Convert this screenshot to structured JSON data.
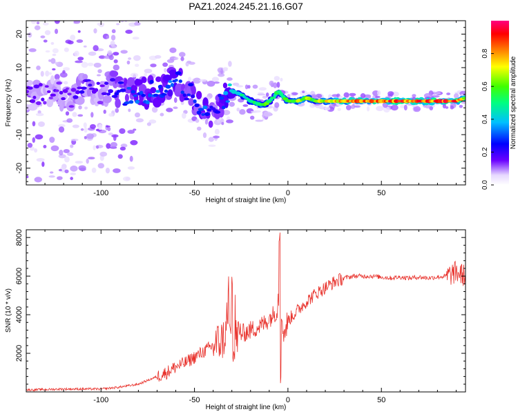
{
  "title": "PAZ1.2024.245.21.16.G07",
  "chart_data": [
    {
      "type": "heatmap",
      "xlabel": "Height of straight line (km)",
      "ylabel": "Frequency (Hz)",
      "xlim": [
        -140,
        95
      ],
      "ylim": [
        -25,
        24
      ],
      "xticks": [
        -100,
        -50,
        0,
        50
      ],
      "yticks": [
        -20,
        -10,
        0,
        10,
        20
      ],
      "colorbar": {
        "label": "Normalized spectral amplitude",
        "range": [
          0,
          1
        ],
        "ticks": [
          0.0,
          0.2,
          0.4,
          0.6,
          0.8
        ],
        "colors": [
          "#ffffff",
          "#6a00ff",
          "#0000ff",
          "#00bfff",
          "#00ff80",
          "#40ff00",
          "#ffff00",
          "#ff8000",
          "#ff0000",
          "#ff0080"
        ]
      },
      "ridge": {
        "x": [
          -135,
          -125,
          -115,
          -110,
          -100,
          -95,
          -88,
          -80,
          -72,
          -65,
          -60,
          -55,
          -50,
          -47,
          -44,
          -40,
          -36,
          -33,
          -30,
          -25,
          -20,
          -15,
          -12,
          -8,
          -5,
          -2,
          0,
          5,
          10,
          15,
          20,
          30,
          40,
          50,
          60,
          70,
          80,
          90,
          95
        ],
        "y": [
          2,
          3,
          1,
          5,
          2,
          5,
          2,
          2,
          3,
          5,
          6,
          4,
          1,
          -2,
          -4,
          -5,
          0,
          2,
          3,
          2,
          0,
          -1,
          -1,
          1,
          3,
          1,
          0,
          0,
          1,
          0,
          0,
          0,
          0,
          0,
          0,
          0,
          0,
          0,
          1
        ],
        "amplitude": [
          0.15,
          0.15,
          0.15,
          0.2,
          0.15,
          0.2,
          0.25,
          0.3,
          0.3,
          0.3,
          0.3,
          0.25,
          0.25,
          0.25,
          0.3,
          0.2,
          0.25,
          0.35,
          0.4,
          0.45,
          0.5,
          0.55,
          0.6,
          0.45,
          0.5,
          0.55,
          0.5,
          0.6,
          0.65,
          0.6,
          0.7,
          0.75,
          0.8,
          0.85,
          0.85,
          0.85,
          0.85,
          0.85,
          0.7
        ]
      }
    },
    {
      "type": "line",
      "xlabel": "Height of straight line (km)",
      "ylabel": "SNR (10 * v/v)",
      "xlim": [
        -140,
        95
      ],
      "ylim": [
        0,
        8400
      ],
      "xticks": [
        -100,
        -50,
        0,
        50
      ],
      "yticks": [
        2000,
        4000,
        6000,
        8000
      ],
      "line_color": "#e8302a",
      "series": [
        {
          "x": [
            -140,
            -120,
            -100,
            -90,
            -80,
            -75,
            -70,
            -65,
            -60,
            -55,
            -50,
            -45,
            -40,
            -35,
            -32,
            -30,
            -28,
            -25,
            -20,
            -15,
            -12,
            -10,
            -8,
            -6,
            -5,
            -4.5,
            -4,
            -3.5,
            -2,
            0,
            5,
            10,
            15,
            20,
            25,
            30,
            35,
            40,
            45,
            50,
            55,
            60,
            65,
            70,
            75,
            80,
            85,
            90,
            95
          ],
          "y": [
            100,
            150,
            150,
            250,
            400,
            600,
            800,
            1000,
            1300,
            1500,
            1800,
            2100,
            2400,
            2700,
            3200,
            2500,
            2800,
            3000,
            3200,
            3400,
            3600,
            3800,
            4000,
            4200,
            5000,
            8300,
            500,
            4000,
            3000,
            3700,
            4200,
            4700,
            5100,
            5400,
            5700,
            5900,
            6000,
            6000,
            6000,
            5950,
            5900,
            5950,
            5900,
            5950,
            5900,
            5950,
            6000,
            6200,
            6000
          ]
        }
      ]
    }
  ]
}
